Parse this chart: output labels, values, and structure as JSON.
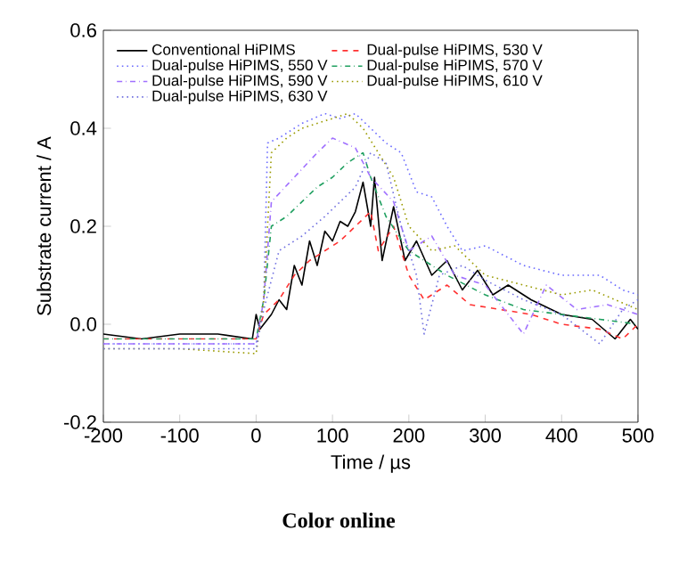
{
  "chart_data": {
    "type": "line",
    "xlabel": "Time / µs",
    "ylabel": "Substrate current / A",
    "xlim": [
      -200,
      500
    ],
    "ylim": [
      -0.2,
      0.6
    ],
    "xticks": [
      -200,
      -100,
      0,
      100,
      200,
      300,
      400,
      500
    ],
    "yticks": [
      -0.2,
      {
        "value": 0,
        "label": "0.0"
      },
      0.2,
      0.4,
      0.6
    ],
    "legend": "top left",
    "annotations": [
      "Color online"
    ],
    "series": [
      {
        "name": "Conventional HiPIMS",
        "color": "#000000",
        "line_style": "solid",
        "x": [
          -200,
          -150,
          -100,
          -50,
          -5,
          0,
          5,
          20,
          30,
          40,
          50,
          60,
          70,
          80,
          90,
          100,
          110,
          120,
          130,
          140,
          150,
          155,
          165,
          180,
          195,
          210,
          230,
          250,
          270,
          290,
          310,
          330,
          360,
          400,
          440,
          470,
          490,
          500
        ],
        "values": [
          -0.02,
          -0.03,
          -0.02,
          -0.02,
          -0.03,
          0.02,
          -0.01,
          0.02,
          0.05,
          0.03,
          0.12,
          0.08,
          0.17,
          0.12,
          0.19,
          0.17,
          0.21,
          0.2,
          0.23,
          0.29,
          0.2,
          0.3,
          0.13,
          0.24,
          0.13,
          0.17,
          0.1,
          0.13,
          0.07,
          0.11,
          0.06,
          0.08,
          0.05,
          0.02,
          0.01,
          -0.03,
          0.01,
          -0.01
        ]
      },
      {
        "name": "Dual-pulse HiPIMS, 530 V",
        "color": "#ff3030",
        "line_style": "dashed",
        "x": [
          -200,
          -100,
          0,
          10,
          30,
          50,
          70,
          90,
          110,
          130,
          150,
          160,
          180,
          200,
          220,
          250,
          280,
          320,
          360,
          400,
          450,
          480,
          500
        ],
        "values": [
          -0.03,
          -0.03,
          -0.03,
          0.02,
          0.05,
          0.1,
          0.13,
          0.15,
          0.17,
          0.2,
          0.23,
          0.15,
          0.2,
          0.1,
          0.05,
          0.08,
          0.04,
          0.03,
          0.02,
          0.0,
          -0.01,
          -0.03,
          0.0
        ]
      },
      {
        "name": "Dual-pulse HiPIMS, 550 V",
        "color": "#6a6aff",
        "line_style": "dotted",
        "x": [
          -200,
          -100,
          0,
          10,
          15,
          30,
          60,
          90,
          110,
          130,
          150,
          170,
          190,
          210,
          230,
          250,
          270,
          300,
          350,
          400,
          450,
          480,
          500
        ],
        "values": [
          -0.04,
          -0.04,
          -0.04,
          0.05,
          0.37,
          0.38,
          0.41,
          0.43,
          0.42,
          0.43,
          0.4,
          0.37,
          0.35,
          0.27,
          0.26,
          0.2,
          0.15,
          0.16,
          0.12,
          0.1,
          0.1,
          0.07,
          0.06
        ]
      },
      {
        "name": "Dual-pulse HiPIMS, 570 V",
        "color": "#20a060",
        "line_style": "dashdot",
        "x": [
          -200,
          -100,
          0,
          10,
          20,
          40,
          60,
          80,
          100,
          120,
          140,
          150,
          170,
          200,
          250,
          300,
          350,
          400,
          450,
          500
        ],
        "values": [
          -0.03,
          -0.03,
          -0.03,
          0.05,
          0.2,
          0.22,
          0.25,
          0.28,
          0.3,
          0.33,
          0.35,
          0.3,
          0.22,
          0.15,
          0.1,
          0.06,
          0.03,
          0.02,
          0.01,
          0.0
        ]
      },
      {
        "name": "Dual-pulse HiPIMS, 590 V",
        "color": "#a070ff",
        "line_style": "dashdot",
        "x": [
          -200,
          -100,
          0,
          10,
          20,
          50,
          80,
          100,
          130,
          150,
          180,
          200,
          230,
          260,
          300,
          350,
          380,
          420,
          460,
          500
        ],
        "values": [
          -0.04,
          -0.04,
          -0.04,
          0.05,
          0.25,
          0.3,
          0.35,
          0.38,
          0.36,
          0.3,
          0.25,
          0.15,
          0.18,
          0.1,
          0.08,
          -0.02,
          0.08,
          0.03,
          0.04,
          0.02
        ]
      },
      {
        "name": "Dual-pulse HiPIMS, 610 V",
        "color": "#9a9a00",
        "line_style": "dotted",
        "x": [
          -200,
          -100,
          0,
          10,
          20,
          40,
          60,
          80,
          100,
          120,
          140,
          160,
          180,
          200,
          230,
          260,
          300,
          350,
          400,
          440,
          500
        ],
        "values": [
          -0.05,
          -0.05,
          -0.06,
          0.05,
          0.35,
          0.38,
          0.4,
          0.41,
          0.42,
          0.43,
          0.4,
          0.35,
          0.3,
          0.2,
          0.15,
          0.16,
          0.1,
          0.08,
          0.06,
          0.07,
          0.03
        ]
      },
      {
        "name": "Dual-pulse HiPIMS, 630 V",
        "color": "#7070e0",
        "line_style": "dotted",
        "x": [
          -200,
          -100,
          0,
          10,
          30,
          60,
          90,
          110,
          130,
          150,
          170,
          190,
          210,
          220,
          240,
          270,
          300,
          350,
          400,
          450,
          480,
          500
        ],
        "values": [
          -0.05,
          -0.05,
          -0.05,
          0.03,
          0.15,
          0.18,
          0.22,
          0.25,
          0.28,
          0.35,
          0.33,
          0.2,
          0.1,
          -0.02,
          0.1,
          0.12,
          0.09,
          0.05,
          0.02,
          -0.04,
          0.03,
          0.05
        ]
      }
    ]
  }
}
